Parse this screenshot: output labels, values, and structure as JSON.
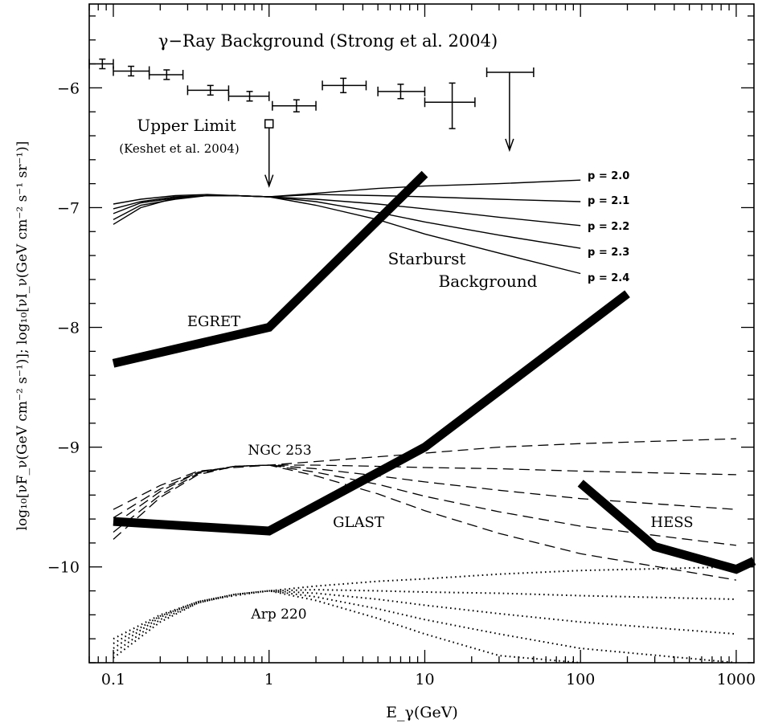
{
  "chart_data": {
    "type": "line",
    "x_scale": "log",
    "xlim": [
      0.07,
      1300
    ],
    "ylim": [
      -10.8,
      -5.3
    ],
    "xlabel": "E_γ(GeV)",
    "ylabel": "log₁₀[νF_ν(GeV cm⁻² s⁻¹)]; log₁₀[νI_ν(GeV cm⁻² s⁻¹ sr⁻¹)]",
    "x_ticks": [
      0.1,
      1,
      10,
      100,
      1000
    ],
    "x_tick_labels": [
      "0.1",
      "1",
      "10",
      "100",
      "1000"
    ],
    "y_ticks": [
      -10,
      -9,
      -8,
      -7,
      -6
    ],
    "y_tick_labels": [
      "−10",
      "−9",
      "−8",
      "−7",
      "−6"
    ],
    "background_title": "γ−Ray Background (Strong et al. 2004)",
    "background_points": [
      {
        "x": 0.085,
        "xlo": 0.07,
        "xhi": 0.1,
        "y": -5.8,
        "ylo": -5.84,
        "yhi": -5.76
      },
      {
        "x": 0.13,
        "xlo": 0.1,
        "xhi": 0.17,
        "y": -5.86,
        "ylo": -5.9,
        "yhi": -5.82
      },
      {
        "x": 0.22,
        "xlo": 0.17,
        "xhi": 0.28,
        "y": -5.89,
        "ylo": -5.93,
        "yhi": -5.85
      },
      {
        "x": 0.42,
        "xlo": 0.3,
        "xhi": 0.55,
        "y": -6.02,
        "ylo": -6.06,
        "yhi": -5.98
      },
      {
        "x": 0.75,
        "xlo": 0.55,
        "xhi": 1.0,
        "y": -6.07,
        "ylo": -6.11,
        "yhi": -6.03
      },
      {
        "x": 1.5,
        "xlo": 1.05,
        "xhi": 2.0,
        "y": -6.15,
        "ylo": -6.2,
        "yhi": -6.1
      },
      {
        "x": 3.0,
        "xlo": 2.2,
        "xhi": 4.2,
        "y": -5.98,
        "ylo": -6.04,
        "yhi": -5.92
      },
      {
        "x": 7.0,
        "xlo": 5.0,
        "xhi": 10.0,
        "y": -6.03,
        "ylo": -6.09,
        "yhi": -5.97
      },
      {
        "x": 15.0,
        "xlo": 10.0,
        "xhi": 21.0,
        "y": -6.12,
        "ylo": -6.34,
        "yhi": -5.96
      }
    ],
    "background_upper_limit": {
      "x": 35,
      "xlo": 25,
      "xhi": 50,
      "y": -5.87,
      "arrow_to": -6.52
    },
    "upper_limit_label": "Upper Limit",
    "upper_limit_ref": "(Keshet et al. 2004)",
    "upper_limit_point": {
      "x": 1.0,
      "y": -6.3,
      "arrow_to": -6.82
    },
    "starburst_label_1": "Starburst",
    "starburst_label_2": "Background",
    "starburst_series": [
      {
        "name": "p = 2.0",
        "p": 2.0,
        "x": [
          0.1,
          0.15,
          0.25,
          0.4,
          0.6,
          1,
          2,
          5,
          10,
          30,
          100
        ],
        "y": [
          -7.14,
          -7.0,
          -6.92,
          -6.9,
          -6.9,
          -6.91,
          -6.88,
          -6.84,
          -6.82,
          -6.8,
          -6.77
        ]
      },
      {
        "name": "p = 2.1",
        "p": 2.1,
        "x": [
          0.1,
          0.15,
          0.25,
          0.4,
          0.6,
          1,
          2,
          5,
          10,
          30,
          100
        ],
        "y": [
          -7.1,
          -6.98,
          -6.93,
          -6.9,
          -6.9,
          -6.91,
          -6.89,
          -6.9,
          -6.91,
          -6.93,
          -6.95
        ]
      },
      {
        "name": "p = 2.2",
        "p": 2.2,
        "x": [
          0.1,
          0.15,
          0.25,
          0.4,
          0.6,
          1,
          2,
          5,
          10,
          30,
          100
        ],
        "y": [
          -7.05,
          -6.96,
          -6.92,
          -6.9,
          -6.9,
          -6.91,
          -6.93,
          -6.97,
          -7.01,
          -7.08,
          -7.15
        ]
      },
      {
        "name": "p = 2.3",
        "p": 2.3,
        "x": [
          0.1,
          0.15,
          0.25,
          0.4,
          0.6,
          1,
          2,
          5,
          10,
          30,
          100
        ],
        "y": [
          -7.01,
          -6.95,
          -6.91,
          -6.9,
          -6.9,
          -6.91,
          -6.95,
          -7.04,
          -7.12,
          -7.23,
          -7.34
        ]
      },
      {
        "name": "p = 2.4",
        "p": 2.4,
        "x": [
          0.1,
          0.15,
          0.25,
          0.4,
          0.6,
          1,
          2,
          5,
          10,
          30,
          100
        ],
        "y": [
          -6.97,
          -6.93,
          -6.9,
          -6.89,
          -6.9,
          -6.91,
          -6.98,
          -7.1,
          -7.22,
          -7.38,
          -7.55
        ]
      }
    ],
    "ngc253_label": "NGC 253",
    "ngc253_series": [
      {
        "x": [
          0.1,
          0.2,
          0.35,
          0.6,
          1,
          2,
          5,
          10,
          30,
          100,
          1000
        ],
        "y": [
          -9.52,
          -9.32,
          -9.2,
          -9.17,
          -9.15,
          -9.12,
          -9.08,
          -9.05,
          -9.0,
          -8.97,
          -8.93
        ]
      },
      {
        "x": [
          0.1,
          0.2,
          0.35,
          0.6,
          1,
          2,
          5,
          10,
          30,
          100,
          1000
        ],
        "y": [
          -9.59,
          -9.35,
          -9.21,
          -9.16,
          -9.15,
          -9.15,
          -9.16,
          -9.17,
          -9.18,
          -9.2,
          -9.23
        ]
      },
      {
        "x": [
          0.1,
          0.2,
          0.35,
          0.6,
          1,
          2,
          5,
          10,
          30,
          100,
          1000
        ],
        "y": [
          -9.65,
          -9.37,
          -9.21,
          -9.16,
          -9.15,
          -9.18,
          -9.24,
          -9.29,
          -9.36,
          -9.43,
          -9.52
        ]
      },
      {
        "x": [
          0.1,
          0.2,
          0.35,
          0.6,
          1,
          2,
          5,
          10,
          30,
          100,
          1000
        ],
        "y": [
          -9.71,
          -9.4,
          -9.22,
          -9.16,
          -9.15,
          -9.21,
          -9.31,
          -9.41,
          -9.54,
          -9.66,
          -9.82
        ]
      },
      {
        "x": [
          0.1,
          0.2,
          0.35,
          0.6,
          1,
          2,
          5,
          10,
          30,
          100,
          1000
        ],
        "y": [
          -9.77,
          -9.42,
          -9.23,
          -9.16,
          -9.15,
          -9.24,
          -9.39,
          -9.53,
          -9.72,
          -9.89,
          -10.11
        ]
      }
    ],
    "arp220_label": "Arp 220",
    "arp220_series": [
      {
        "x": [
          0.1,
          0.2,
          0.35,
          0.6,
          1,
          2,
          5,
          10,
          30,
          100,
          1000
        ],
        "y": [
          -10.6,
          -10.4,
          -10.29,
          -10.24,
          -10.2,
          -10.16,
          -10.12,
          -10.1,
          -10.06,
          -10.03,
          -10.0
        ]
      },
      {
        "x": [
          0.1,
          0.2,
          0.35,
          0.6,
          1,
          2,
          5,
          10,
          30,
          100,
          1000
        ],
        "y": [
          -10.64,
          -10.41,
          -10.29,
          -10.23,
          -10.2,
          -10.19,
          -10.2,
          -10.21,
          -10.22,
          -10.24,
          -10.27
        ]
      },
      {
        "x": [
          0.1,
          0.2,
          0.35,
          0.6,
          1,
          2,
          5,
          10,
          30,
          100,
          1000
        ],
        "y": [
          -10.68,
          -10.42,
          -10.29,
          -10.23,
          -10.2,
          -10.22,
          -10.27,
          -10.32,
          -10.39,
          -10.46,
          -10.56
        ]
      },
      {
        "x": [
          0.1,
          0.2,
          0.35,
          0.6,
          1,
          2,
          5,
          10,
          30,
          100,
          1000
        ],
        "y": [
          -10.72,
          -10.44,
          -10.3,
          -10.23,
          -10.2,
          -10.25,
          -10.35,
          -10.44,
          -10.56,
          -10.68,
          -10.84
        ]
      },
      {
        "x": [
          0.1,
          0.2,
          0.35,
          0.6,
          1,
          2,
          5,
          10,
          30,
          100
        ],
        "y": [
          -10.76,
          -10.46,
          -10.3,
          -10.23,
          -10.2,
          -10.28,
          -10.43,
          -10.56,
          -10.74,
          -10.91
        ]
      }
    ],
    "sensitivity_curves": [
      {
        "name": "EGRET",
        "x": [
          0.1,
          1,
          10
        ],
        "y": [
          -8.3,
          -8.0,
          -6.72
        ]
      },
      {
        "name": "GLAST",
        "x": [
          0.1,
          1,
          10,
          200
        ],
        "y": [
          -9.62,
          -9.7,
          -9.0,
          -7.72
        ]
      },
      {
        "name": "HESS",
        "x": [
          100,
          300,
          1000,
          1300
        ],
        "y": [
          -9.3,
          -9.83,
          -10.02,
          -9.95
        ]
      }
    ]
  }
}
